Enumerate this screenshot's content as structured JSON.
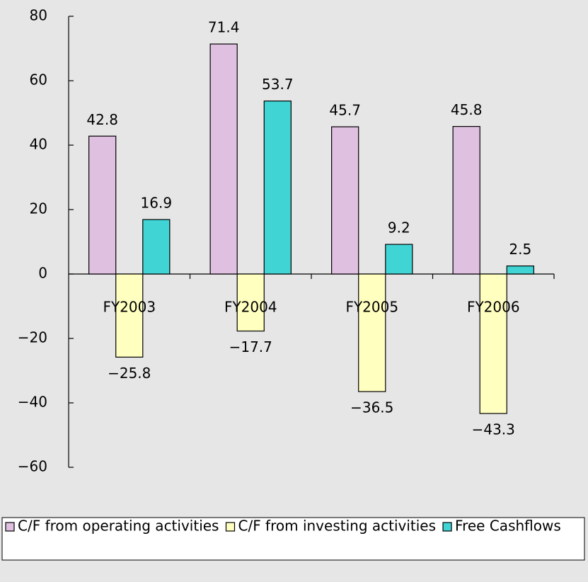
{
  "chart_data": {
    "type": "bar",
    "categories": [
      "FY2003",
      "FY2004",
      "FY2005",
      "FY2006"
    ],
    "series": [
      {
        "name": "C/F from operating activities",
        "color": "#e0c0e0",
        "values": [
          42.8,
          71.4,
          45.7,
          45.8
        ]
      },
      {
        "name": "C/F from investing activities",
        "color": "#ffffc0",
        "values": [
          -25.8,
          -17.7,
          -36.5,
          -43.3
        ],
        "value_labels": [
          "−25.8",
          "−17.7",
          "−36.5",
          "−43.3"
        ]
      },
      {
        "name": "Free Cashflows",
        "color": "#40d4d4",
        "values": [
          16.9,
          53.7,
          9.2,
          2.5
        ]
      }
    ],
    "ylim": [
      -60,
      80
    ],
    "yticks": [
      80,
      60,
      40,
      20,
      0,
      {
        "value": -20,
        "label": "−20"
      },
      {
        "value": -40,
        "label": "−40"
      },
      {
        "value": -60,
        "label": "−60"
      }
    ],
    "legend": "bottom"
  }
}
